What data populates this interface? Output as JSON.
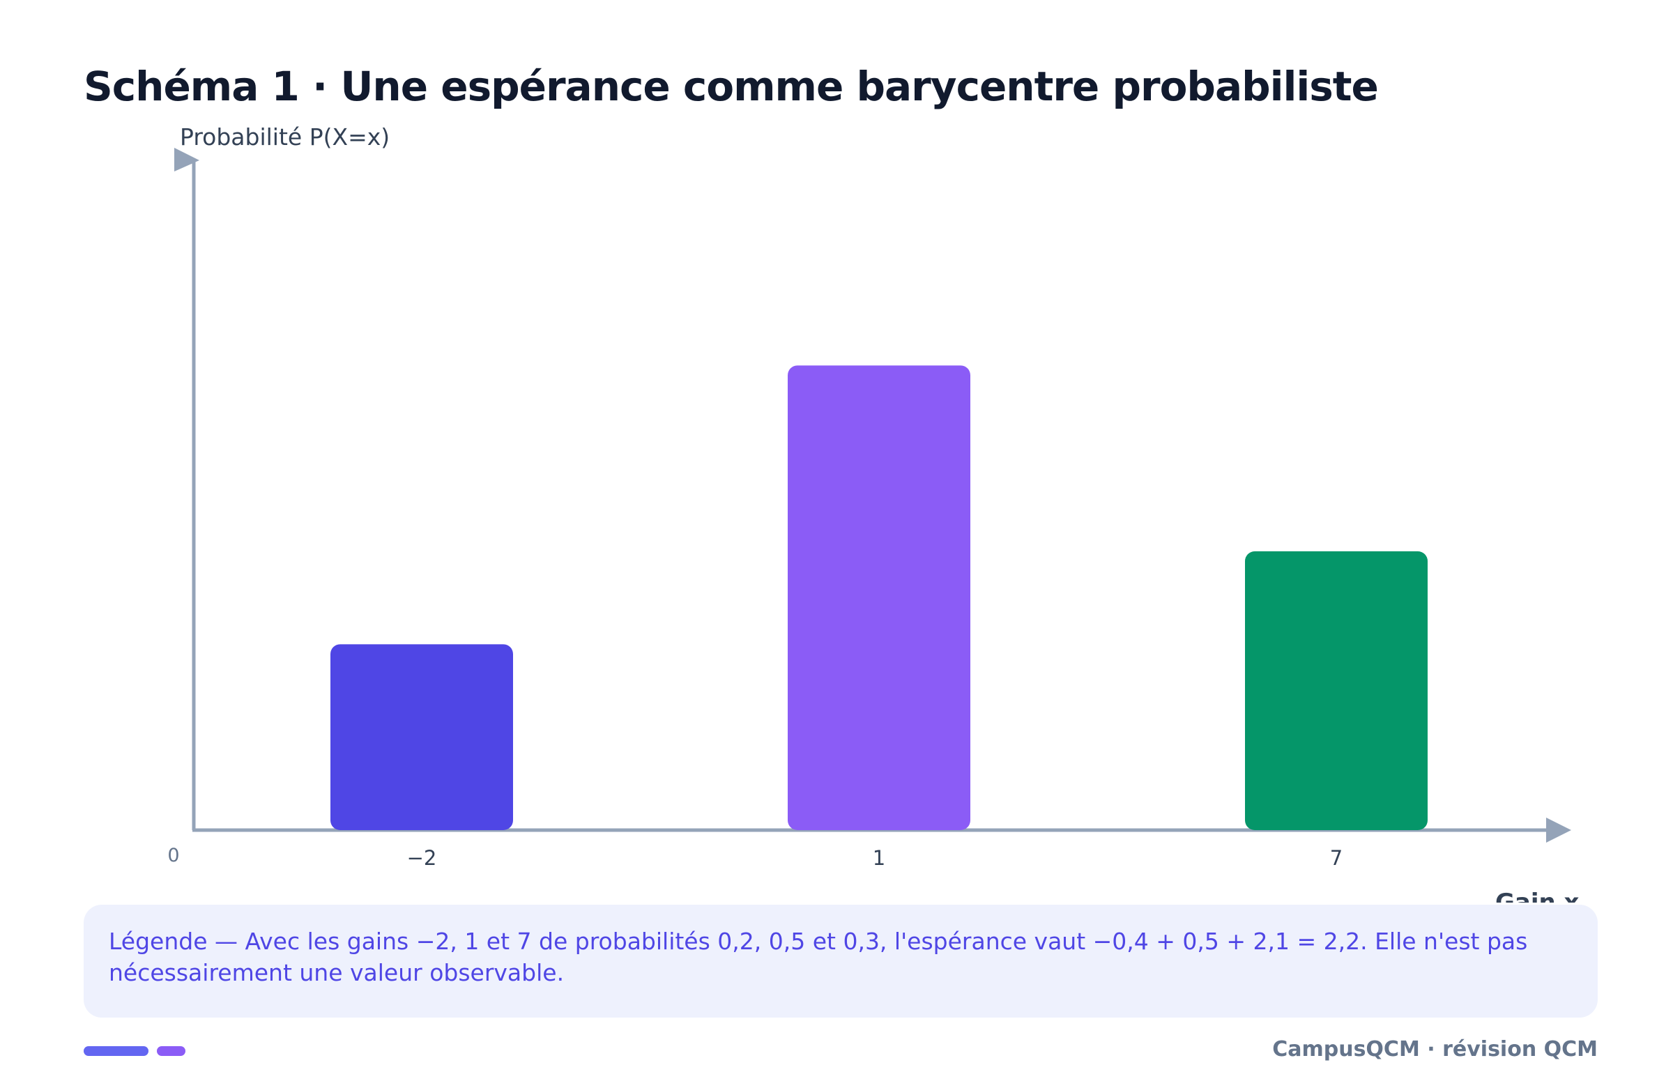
{
  "title": "Schéma 1 · Une espérance comme barycentre probabiliste",
  "chart_data": {
    "type": "bar",
    "categories": [
      "−2",
      "1",
      "7"
    ],
    "values": [
      0.2,
      0.5,
      0.3
    ],
    "colors": [
      "#4f46e5",
      "#8b5cf6",
      "#059669"
    ],
    "xlabel": "Gain x",
    "ylabel": "Probabilité P(X=x)",
    "origin_label": "0",
    "ylim": [
      0,
      0.6
    ],
    "grid": false
  },
  "legend_text": "Légende — Avec les gains −2, 1 et 7 de probabilités 0,2, 0,5 et 0,3, l'espérance vaut −0,4 + 0,5 + 2,1 = 2,2. Elle n'est pas nécessairement une valeur observable.",
  "footer": {
    "text": "CampusQCM · révision QCM",
    "accent_colors": [
      "#6366f1",
      "#8b5cf6"
    ]
  }
}
